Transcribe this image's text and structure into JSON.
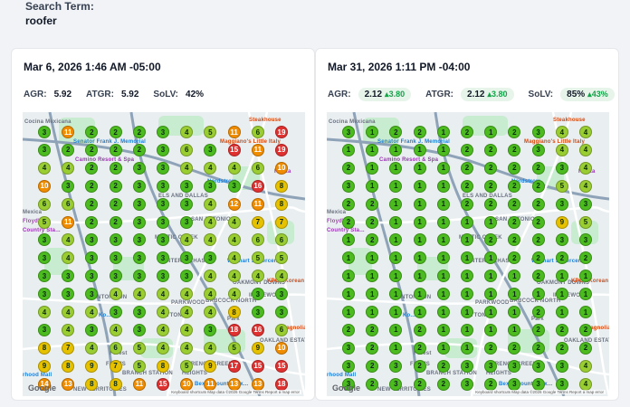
{
  "search": {
    "label": "Search Term:",
    "value": "roofer"
  },
  "colors": {
    "green": "#4cbb1f",
    "lime": "#9acd32",
    "yellow": "#e5c100",
    "orange": "#f08c00",
    "red": "#e03131"
  },
  "cards": [
    {
      "title": "Mar 6, 2026 1:46 AM -05:00",
      "metrics": {
        "agr_label": "AGR:",
        "agr_value": "5.92",
        "atgr_label": "ATGR:",
        "atgr_value": "5.92",
        "solv_label": "SoLV:",
        "solv_value": "42%"
      },
      "grid": [
        [
          3,
          11,
          2,
          2,
          2,
          3,
          4,
          5,
          11,
          6,
          19
        ],
        [
          3,
          2,
          2,
          2,
          2,
          3,
          6,
          3,
          15,
          11,
          19
        ],
        [
          4,
          4,
          2,
          2,
          3,
          3,
          4,
          4,
          4,
          6,
          10
        ],
        [
          10,
          3,
          2,
          2,
          3,
          3,
          3,
          3,
          3,
          16,
          8
        ],
        [
          6,
          6,
          2,
          2,
          3,
          3,
          3,
          4,
          12,
          11,
          8
        ],
        [
          5,
          11,
          2,
          2,
          3,
          3,
          3,
          4,
          4,
          7,
          7
        ],
        [
          3,
          4,
          3,
          3,
          3,
          3,
          4,
          4,
          4,
          6,
          6
        ],
        [
          3,
          4,
          3,
          3,
          3,
          3,
          3,
          3,
          4,
          5,
          5
        ],
        [
          3,
          3,
          3,
          3,
          3,
          3,
          3,
          4,
          4,
          4,
          4
        ],
        [
          3,
          3,
          3,
          4,
          4,
          4,
          4,
          4,
          4,
          3,
          3
        ],
        [
          4,
          4,
          4,
          3,
          3,
          4,
          4,
          4,
          8,
          3,
          3
        ],
        [
          3,
          4,
          3,
          4,
          3,
          4,
          4,
          3,
          18,
          16,
          6
        ],
        [
          8,
          7,
          4,
          6,
          5,
          4,
          4,
          4,
          5,
          9,
          10
        ],
        [
          9,
          8,
          9,
          7,
          5,
          8,
          5,
          9,
          17,
          15,
          15
        ],
        [
          14,
          13,
          8,
          8,
          11,
          15,
          10,
          11,
          13,
          13,
          18
        ]
      ]
    },
    {
      "title": "Mar 31, 2026 1:11 PM -04:00",
      "metrics": {
        "agr_label": "AGR:",
        "agr_value": "2.12",
        "agr_delta": "3.80",
        "atgr_label": "ATGR:",
        "atgr_value": "2.12",
        "atgr_delta": "3.80",
        "solv_label": "SoLV:",
        "solv_value": "85%",
        "solv_delta": "43%"
      },
      "grid": [
        [
          3,
          1,
          2,
          2,
          1,
          2,
          1,
          2,
          3,
          4,
          4
        ],
        [
          1,
          1,
          1,
          1,
          1,
          2,
          2,
          2,
          3,
          4,
          4
        ],
        [
          2,
          1,
          1,
          1,
          1,
          2,
          2,
          2,
          2,
          3,
          4
        ],
        [
          3,
          1,
          1,
          1,
          1,
          2,
          2,
          2,
          2,
          5,
          4
        ],
        [
          2,
          2,
          1,
          1,
          1,
          2,
          2,
          2,
          2,
          3,
          3
        ],
        [
          2,
          2,
          1,
          1,
          1,
          1,
          1,
          2,
          2,
          9,
          5
        ],
        [
          1,
          2,
          1,
          1,
          1,
          1,
          2,
          2,
          2,
          3,
          3
        ],
        [
          1,
          1,
          1,
          1,
          1,
          1,
          1,
          2,
          2,
          2,
          2
        ],
        [
          1,
          1,
          1,
          1,
          1,
          1,
          1,
          1,
          2,
          1,
          1
        ],
        [
          1,
          1,
          1,
          1,
          1,
          1,
          1,
          1,
          1,
          1,
          1
        ],
        [
          1,
          1,
          1,
          1,
          1,
          1,
          1,
          1,
          2,
          1,
          1
        ],
        [
          2,
          2,
          1,
          2,
          1,
          1,
          1,
          1,
          2,
          2,
          2
        ],
        [
          3,
          2,
          1,
          2,
          1,
          1,
          2,
          2,
          2,
          2,
          2
        ],
        [
          3,
          2,
          3,
          2,
          2,
          3,
          3,
          3,
          3,
          3,
          4
        ],
        [
          3,
          2,
          3,
          2,
          2,
          3,
          2,
          3,
          3,
          3,
          4
        ]
      ]
    }
  ],
  "map": {
    "labels": {
      "cocina": "Cocina Mexicana",
      "steakhouse": "Steakhouse",
      "senator": "Senator Frank J. Memorial",
      "maggianos": "Maggiano's Little Italy",
      "camino": "Camino Resort & Spa",
      "fiesta": "Fiesta",
      "nordstrom": "Nordstrom",
      "dallas": "ELS AND DALLAS",
      "mexica": "Mexica",
      "floyds": "Floyd's",
      "country": "Country Sta...",
      "san_antonio": "SAN ANTONIO",
      "mystic": "MYSTIC CREEK",
      "hunters": "HUNTER'S CHASE",
      "walmart": "Walmart Supercenter",
      "oakmont": "OAKMONT DOWNS",
      "kpot": "KPOT Korean BBQ & Hot Pot",
      "stanton": "STANTON RUN",
      "parkwood": "PARKWOOD",
      "babcock": "BABCOCK NORTH",
      "inglewood": "INGLEWOOD",
      "ko": "Ko...",
      "dayton": "DAYTON",
      "park": "Park",
      "magnolia": "Magnolia",
      "bexar": "Bexar County Tax...",
      "oakland": "OAKLAND ESTATES",
      "forest": "Forest",
      "farms": "FARMS",
      "branch": "BRANCH STATION",
      "french": "FRENCH CREEK",
      "heights": "HEIGHTS",
      "new_territories": "NEW TERRITORIES",
      "rhood": "rhood Mall",
      "google": "Google",
      "attribution": "Keyboard shortcuts  Map data ©2026 Google  Terms  Report a map error"
    }
  }
}
